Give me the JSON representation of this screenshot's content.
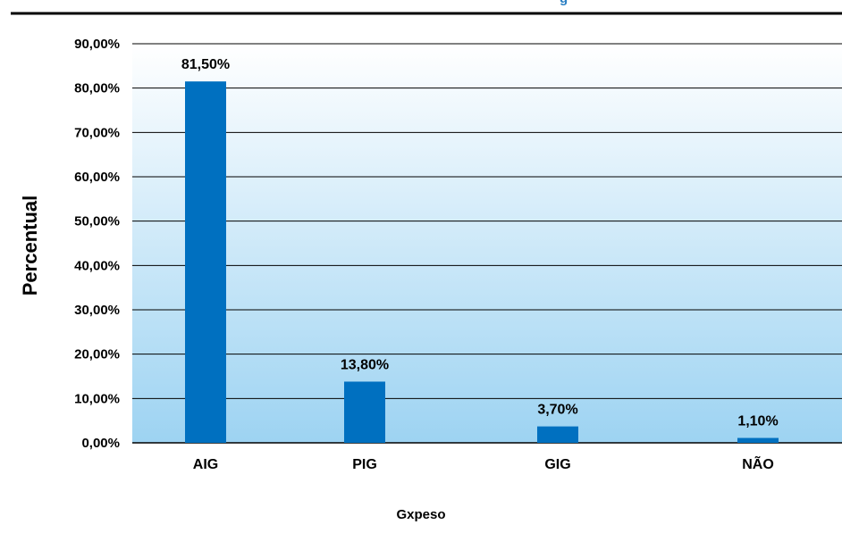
{
  "chart_data": {
    "type": "bar",
    "title": "g",
    "xlabel": "Gxpeso",
    "ylabel": "Percentual",
    "categories": [
      "AIG",
      "PIG",
      "GIG",
      "NÃO"
    ],
    "values": [
      81.5,
      13.8,
      3.7,
      1.1
    ],
    "data_labels": [
      "81,50%",
      "13,80%",
      "3,70%",
      "1,10%"
    ],
    "yticks": [
      "0,00%",
      "10,00%",
      "20,00%",
      "30,00%",
      "40,00%",
      "50,00%",
      "60,00%",
      "70,00%",
      "80,00%",
      "90,00%"
    ],
    "ylim": [
      0,
      90
    ],
    "grid": true,
    "bar_color": "#0070c0",
    "background_gradient": [
      "#ffffff",
      "#9dd3f2"
    ]
  }
}
